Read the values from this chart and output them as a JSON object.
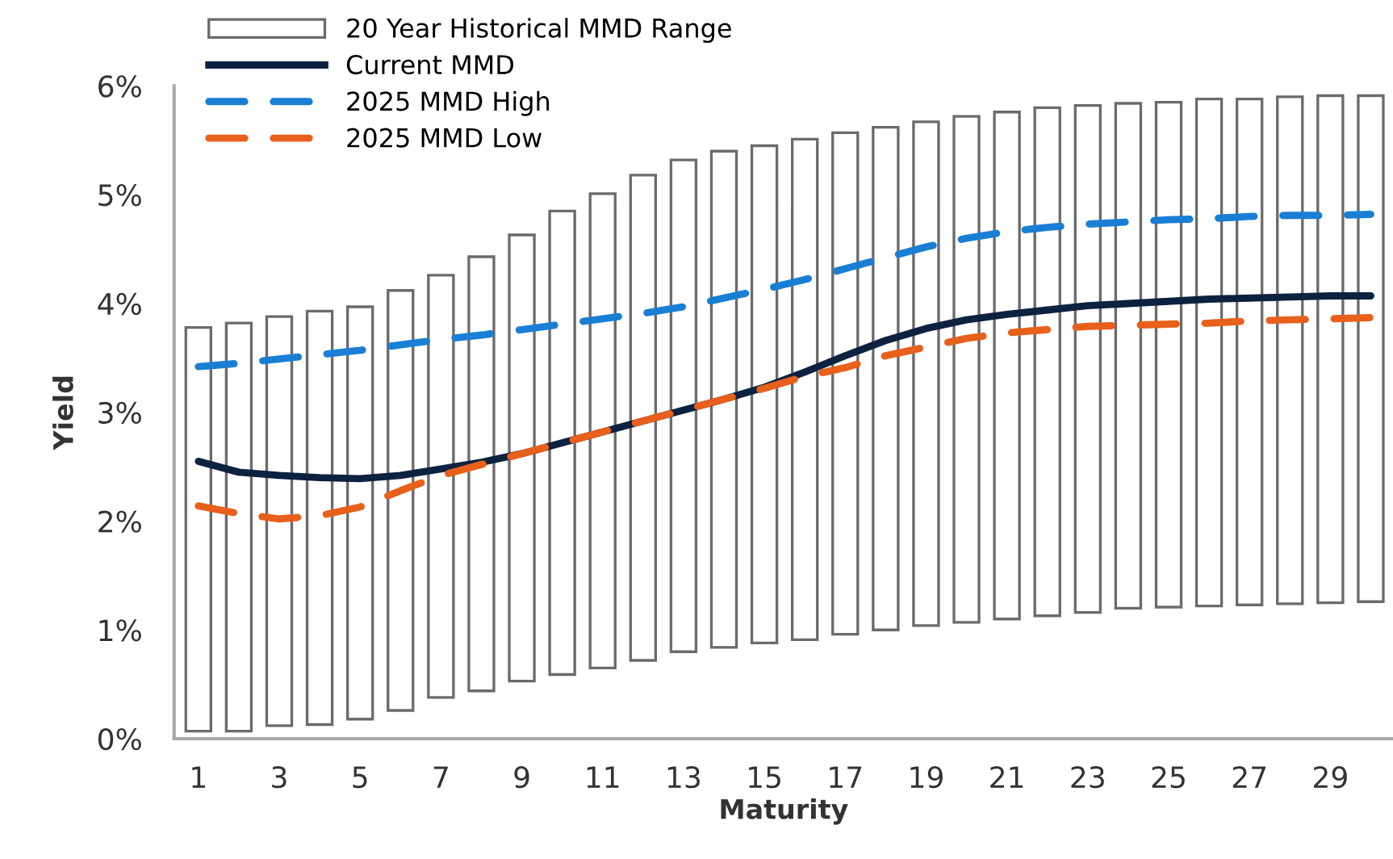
{
  "chart_data": {
    "type": "bar",
    "xlabel": "Maturity",
    "ylabel": "Yield",
    "categories": [
      "1",
      null,
      "3",
      null,
      "5",
      null,
      "7",
      null,
      "9",
      null,
      "11",
      null,
      "13",
      null,
      "15",
      null,
      "17",
      null,
      "19",
      null,
      "21",
      null,
      "23",
      null,
      "25",
      null,
      "27",
      null,
      "29",
      null
    ],
    "series": [
      {
        "name": "20 Year Historical MMD Range",
        "color": "#6b6b6b",
        "base": [
          0.07,
          0.07,
          0.12,
          0.13,
          0.18,
          0.26,
          0.38,
          0.44,
          0.53,
          0.59,
          0.65,
          0.72,
          0.8,
          0.84,
          0.88,
          0.91,
          0.96,
          1.0,
          1.04,
          1.07,
          1.1,
          1.13,
          1.16,
          1.2,
          1.21,
          1.22,
          1.23,
          1.24,
          1.25,
          1.26
        ],
        "values": [
          3.71,
          3.75,
          3.76,
          3.8,
          3.79,
          3.86,
          3.88,
          3.99,
          4.1,
          4.26,
          4.36,
          4.46,
          4.52,
          4.56,
          4.57,
          4.6,
          4.61,
          4.62,
          4.63,
          4.65,
          4.66,
          4.67,
          4.66,
          4.64,
          4.64,
          4.66,
          4.65,
          4.66,
          4.66,
          4.65
        ]
      },
      {
        "name": "Current MMD",
        "type": "line",
        "color": "#0d2240",
        "line_style": "solid",
        "values": [
          2.55,
          2.45,
          2.42,
          2.4,
          2.39,
          2.42,
          2.48,
          2.54,
          2.62,
          2.72,
          2.82,
          2.92,
          3.02,
          3.12,
          3.23,
          3.37,
          3.52,
          3.66,
          3.77,
          3.85,
          3.9,
          3.94,
          3.98,
          4.0,
          4.02,
          4.04,
          4.05,
          4.06,
          4.07,
          4.07
        ]
      },
      {
        "name": "2025 MMD High",
        "type": "line",
        "color": "#1a7fd4",
        "line_style": "dashed",
        "values": [
          3.42,
          3.45,
          3.49,
          3.53,
          3.57,
          3.62,
          3.67,
          3.71,
          3.76,
          3.81,
          3.86,
          3.91,
          3.97,
          4.05,
          4.13,
          4.22,
          4.32,
          4.42,
          4.52,
          4.6,
          4.66,
          4.7,
          4.73,
          4.75,
          4.77,
          4.78,
          4.8,
          4.81,
          4.81,
          4.82
        ]
      },
      {
        "name": "2025 MMD Low",
        "type": "line",
        "color": "#e8601c",
        "line_style": "dashed",
        "values": [
          2.14,
          2.07,
          2.02,
          2.05,
          2.13,
          2.28,
          2.42,
          2.52,
          2.62,
          2.72,
          2.82,
          2.92,
          3.02,
          3.12,
          3.22,
          3.33,
          3.41,
          3.52,
          3.6,
          3.68,
          3.73,
          3.76,
          3.79,
          3.8,
          3.81,
          3.82,
          3.84,
          3.85,
          3.86,
          3.87
        ]
      }
    ],
    "ylim": [
      0,
      6
    ],
    "yticks": [
      {
        "value": 0,
        "label": "0%"
      },
      {
        "value": 1,
        "label": "1%"
      },
      {
        "value": 2,
        "label": "2%"
      },
      {
        "value": 3,
        "label": "3%"
      },
      {
        "value": 4,
        "label": "4%"
      },
      {
        "value": 5,
        "label": "5%"
      },
      {
        "value": 6,
        "label": "6%"
      }
    ],
    "grid": false,
    "legend": "top left",
    "marker": "none"
  }
}
